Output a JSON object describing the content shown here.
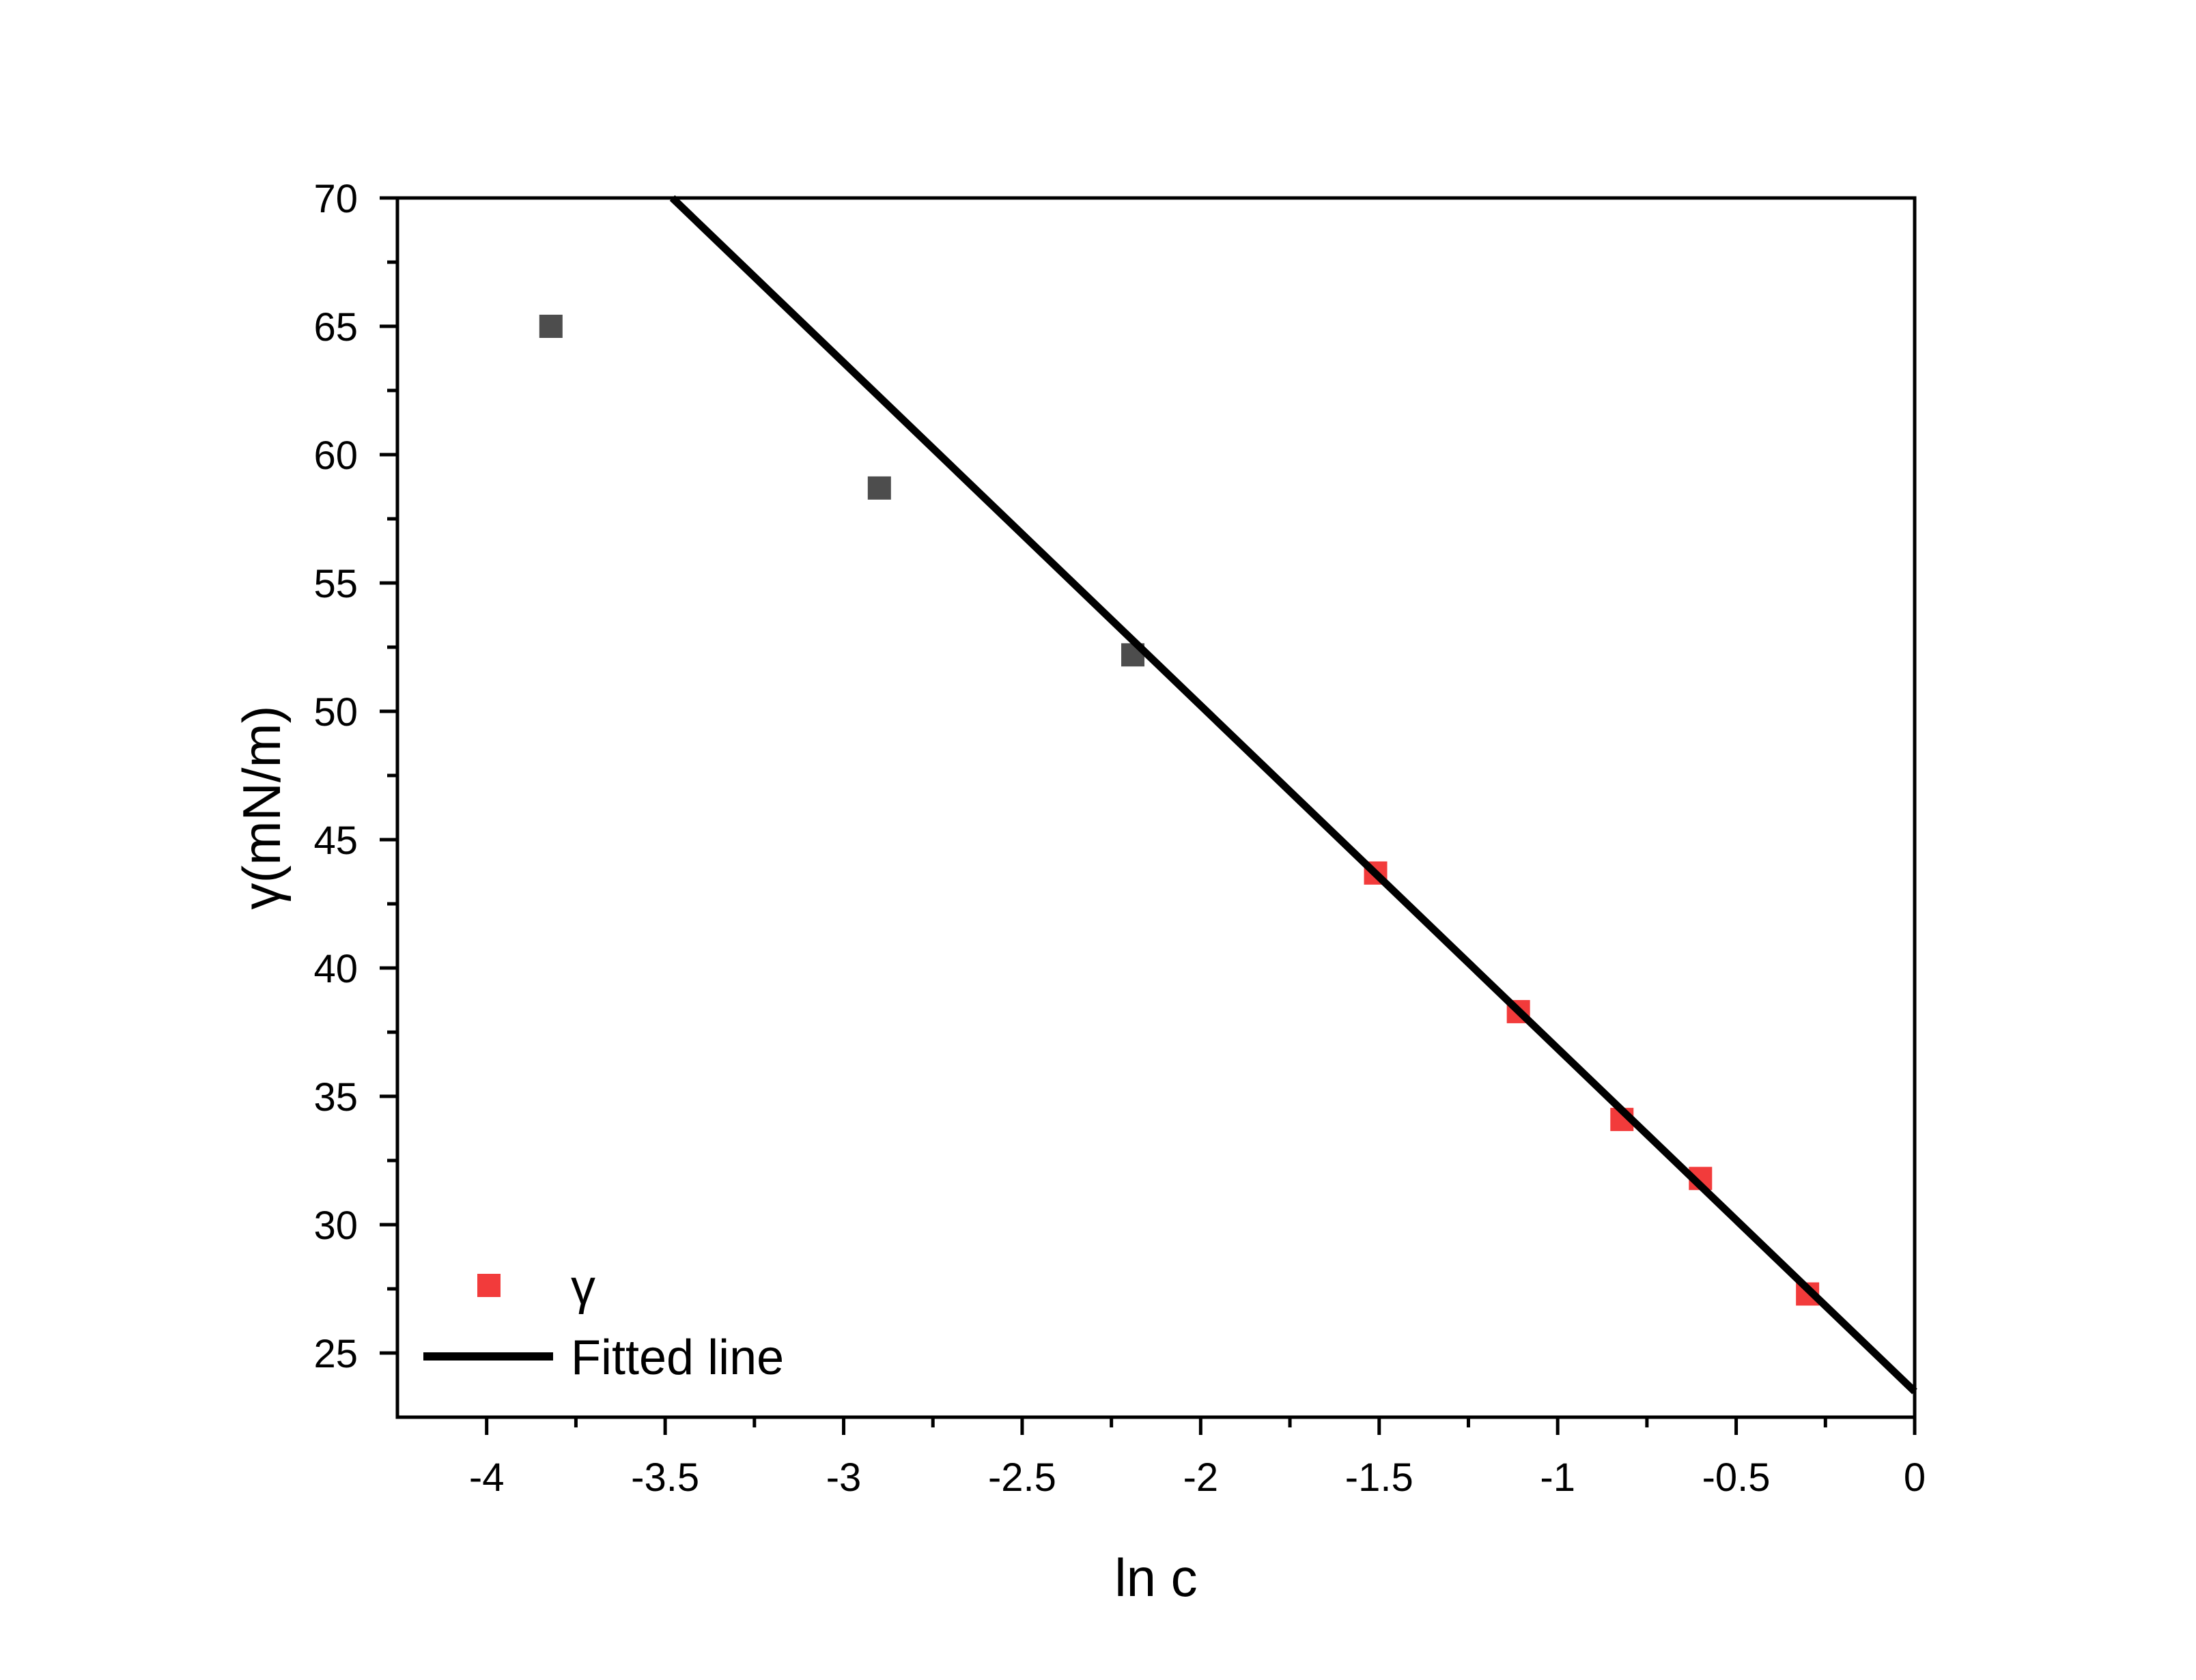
{
  "chart_data": {
    "type": "scatter",
    "title": "",
    "xlabel": "ln c",
    "ylabel": "γ(mN/m)",
    "xlim": [
      -4.25,
      0
    ],
    "ylim": [
      22.5,
      70
    ],
    "x_ticks": [
      "-4",
      "-3.5",
      "-3",
      "-2.5",
      "-2",
      "-1.5",
      "-1",
      "-0.5",
      "0"
    ],
    "y_ticks": [
      "25",
      "30",
      "35",
      "40",
      "45",
      "50",
      "55",
      "60",
      "65",
      "70"
    ],
    "grid": false,
    "legend_position": "bottom-left",
    "series": [
      {
        "name": "γ",
        "type": "scatter",
        "marker": "square",
        "color": "#f23b3b",
        "points": [
          {
            "x": -1.51,
            "y": 43.7
          },
          {
            "x": -1.11,
            "y": 38.3
          },
          {
            "x": -0.82,
            "y": 34.1
          },
          {
            "x": -0.6,
            "y": 31.8
          },
          {
            "x": -0.3,
            "y": 27.3
          }
        ]
      },
      {
        "name": "",
        "type": "scatter",
        "marker": "square",
        "color": "#4d4d4d",
        "points": [
          {
            "x": -3.82,
            "y": 65.0
          },
          {
            "x": -2.9,
            "y": 58.7
          },
          {
            "x": -2.19,
            "y": 52.2
          }
        ]
      },
      {
        "name": "Fitted line",
        "type": "line",
        "color": "#000000",
        "points": [
          {
            "x": -3.48,
            "y": 70.0
          },
          {
            "x": 0.0,
            "y": 23.5
          }
        ]
      }
    ]
  }
}
